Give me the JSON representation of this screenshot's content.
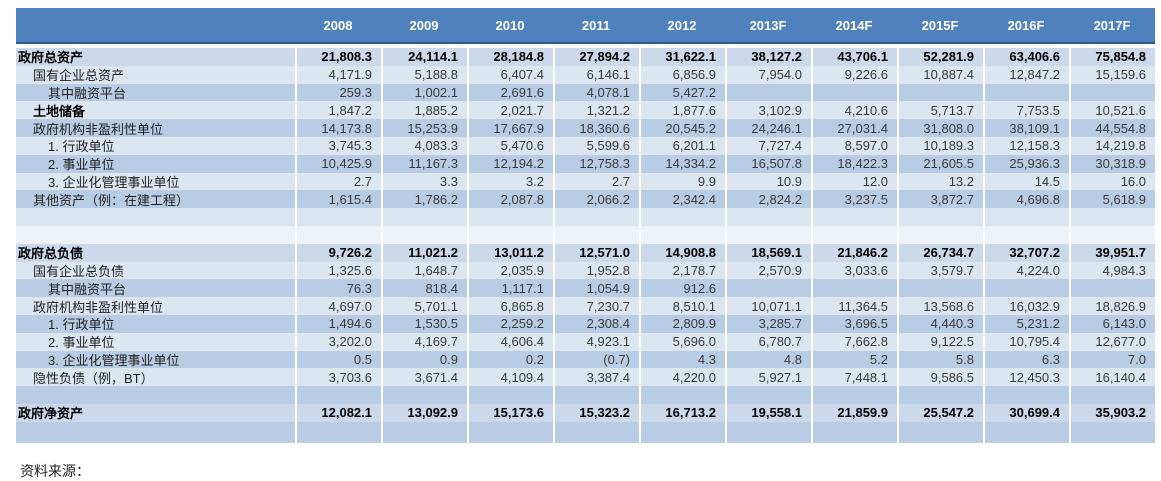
{
  "colors": {
    "header-bg": "#4F81BD",
    "header-text": "#FFFFFF",
    "header-border": "#2E5C8A",
    "row-light": "#DCE6F1",
    "row-medium": "#B8CCE4",
    "row-total": "#CBD9EB",
    "row-pale": "#EDF2F9"
  },
  "table": {
    "columns": [
      "2008",
      "2009",
      "2010",
      "2011",
      "2012",
      "2013F",
      "2014F",
      "2015F",
      "2016F",
      "2017F"
    ],
    "rows": [
      {
        "label": "政府总资产",
        "indent": 0,
        "kind": "total",
        "values": [
          "21,808.3",
          "24,114.1",
          "28,184.8",
          "27,894.2",
          "31,622.1",
          "38,127.2",
          "43,706.1",
          "52,281.9",
          "63,406.6",
          "75,854.8"
        ]
      },
      {
        "label": "国有企业总资产",
        "indent": 1,
        "kind": "light",
        "values": [
          "4,171.9",
          "5,188.8",
          "6,407.4",
          "6,146.1",
          "6,856.9",
          "7,954.0",
          "9,226.6",
          "10,887.4",
          "12,847.2",
          "15,159.6"
        ]
      },
      {
        "label": "其中融资平台",
        "indent": 2,
        "kind": "medium",
        "values": [
          "259.3",
          "1,002.1",
          "2,691.6",
          "4,078.1",
          "5,427.2",
          "",
          "",
          "",
          "",
          ""
        ]
      },
      {
        "label": "土地储备",
        "indent": 1,
        "kind": "light",
        "label_bold": true,
        "values": [
          "1,847.2",
          "1,885.2",
          "2,021.7",
          "1,321.2",
          "1,877.6",
          "3,102.9",
          "4,210.6",
          "5,713.7",
          "7,753.5",
          "10,521.6"
        ]
      },
      {
        "label": "政府机构非盈利性单位",
        "indent": 1,
        "kind": "medium",
        "values": [
          "14,173.8",
          "15,253.9",
          "17,667.9",
          "18,360.6",
          "20,545.2",
          "24,246.1",
          "27,031.4",
          "31,808.0",
          "38,109.1",
          "44,554.8"
        ]
      },
      {
        "label": "1. 行政单位",
        "indent": 2,
        "kind": "light",
        "values": [
          "3,745.3",
          "4,083.3",
          "5,470.6",
          "5,599.6",
          "6,201.1",
          "7,727.4",
          "8,597.0",
          "10,189.3",
          "12,158.3",
          "14,219.8"
        ]
      },
      {
        "label": "2. 事业单位",
        "indent": 2,
        "kind": "medium",
        "values": [
          "10,425.9",
          "11,167.3",
          "12,194.2",
          "12,758.3",
          "14,334.2",
          "16,507.8",
          "18,422.3",
          "21,605.5",
          "25,936.3",
          "30,318.9"
        ]
      },
      {
        "label": "3. 企业化管理事业单位",
        "indent": 2,
        "kind": "light",
        "values": [
          "2.7",
          "3.3",
          "3.2",
          "2.7",
          "9.9",
          "10.9",
          "12.0",
          "13.2",
          "14.5",
          "16.0"
        ]
      },
      {
        "label": "其他资产（例：在建工程）",
        "indent": 1,
        "kind": "medium",
        "values": [
          "1,615.4",
          "1,786.2",
          "2,087.8",
          "2,066.2",
          "2,342.4",
          "2,824.2",
          "3,237.5",
          "3,872.7",
          "4,696.8",
          "5,618.9"
        ]
      },
      {
        "label": "",
        "indent": 0,
        "kind": "blank-light",
        "values": [
          "",
          "",
          "",
          "",
          "",
          "",
          "",
          "",
          "",
          ""
        ]
      },
      {
        "label": "",
        "indent": 0,
        "kind": "blank-pale",
        "values": [
          "",
          "",
          "",
          "",
          "",
          "",
          "",
          "",
          "",
          ""
        ]
      },
      {
        "label": "政府总负债",
        "indent": 0,
        "kind": "total",
        "values": [
          "9,726.2",
          "11,021.2",
          "13,011.2",
          "12,571.0",
          "14,908.8",
          "18,569.1",
          "21,846.2",
          "26,734.7",
          "32,707.2",
          "39,951.7"
        ]
      },
      {
        "label": "国有企业总负债",
        "indent": 1,
        "kind": "light",
        "values": [
          "1,325.6",
          "1,648.7",
          "2,035.9",
          "1,952.8",
          "2,178.7",
          "2,570.9",
          "3,033.6",
          "3,579.7",
          "4,224.0",
          "4,984.3"
        ]
      },
      {
        "label": "其中融资平台",
        "indent": 2,
        "kind": "medium",
        "values": [
          "76.3",
          "818.4",
          "1,117.1",
          "1,054.9",
          "912.6",
          "",
          "",
          "",
          "",
          ""
        ]
      },
      {
        "label": "政府机构非盈利性单位",
        "indent": 1,
        "kind": "light",
        "values": [
          "4,697.0",
          "5,701.1",
          "6,865.8",
          "7,230.7",
          "8,510.1",
          "10,071.1",
          "11,364.5",
          "13,568.6",
          "16,032.9",
          "18,826.9"
        ]
      },
      {
        "label": "1. 行政单位",
        "indent": 2,
        "kind": "medium",
        "values": [
          "1,494.6",
          "1,530.5",
          "2,259.2",
          "2,308.4",
          "2,809.9",
          "3,285.7",
          "3,696.5",
          "4,440.3",
          "5,231.2",
          "6,143.0"
        ]
      },
      {
        "label": "2. 事业单位",
        "indent": 2,
        "kind": "light",
        "values": [
          "3,202.0",
          "4,169.7",
          "4,606.4",
          "4,923.1",
          "5,696.0",
          "6,780.7",
          "7,662.8",
          "9,122.5",
          "10,795.4",
          "12,677.0"
        ]
      },
      {
        "label": "3. 企业化管理事业单位",
        "indent": 2,
        "kind": "medium",
        "values": [
          "0.5",
          "0.9",
          "0.2",
          "(0.7)",
          "4.3",
          "4.8",
          "5.2",
          "5.8",
          "6.3",
          "7.0"
        ]
      },
      {
        "label": "隐性负债（例，BT）",
        "indent": 1,
        "kind": "light",
        "values": [
          "3,703.6",
          "3,671.4",
          "4,109.4",
          "3,387.4",
          "4,220.0",
          "5,927.1",
          "7,448.1",
          "9,586.5",
          "12,450.3",
          "16,140.4"
        ]
      },
      {
        "label": "",
        "indent": 0,
        "kind": "blank-medium",
        "values": [
          "",
          "",
          "",
          "",
          "",
          "",
          "",
          "",
          "",
          ""
        ]
      },
      {
        "label": "政府净资产",
        "indent": 0,
        "kind": "total",
        "values": [
          "12,082.1",
          "13,092.9",
          "15,173.6",
          "15,323.2",
          "16,713.2",
          "19,558.1",
          "21,859.9",
          "25,547.2",
          "30,699.4",
          "35,903.2"
        ]
      },
      {
        "label": "",
        "indent": 0,
        "kind": "band",
        "values": [
          "",
          "",
          "",
          "",
          "",
          "",
          "",
          "",
          "",
          ""
        ]
      }
    ]
  },
  "footnote": "资料来源："
}
